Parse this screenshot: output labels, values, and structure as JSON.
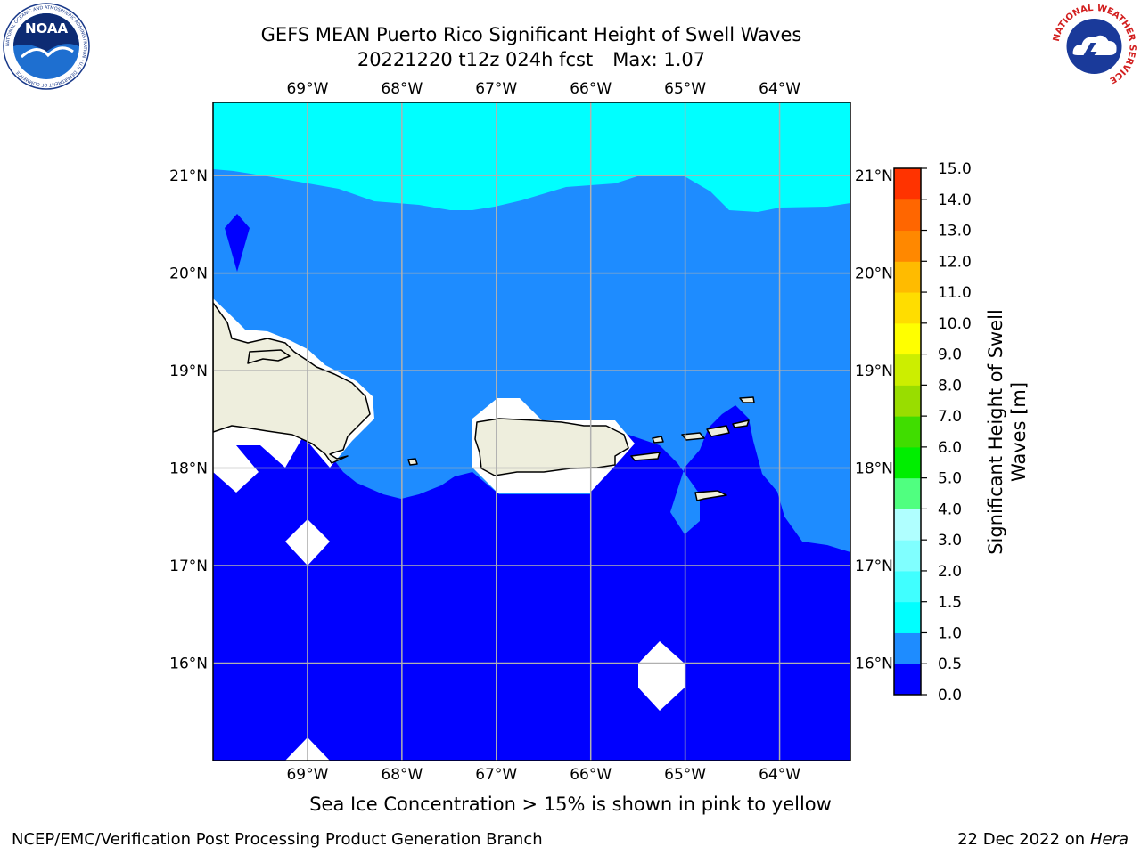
{
  "title": {
    "line1": "GEFS MEAN Puerto Rico Significant Height of Swell Waves",
    "run": "20221220 t12z 024h fcst",
    "max": "Max: 1.07"
  },
  "caption": "Sea Ice Concentration > 15% is shown in pink to yellow",
  "footer": {
    "left": "NCEP/EMC/Verification Post Processing Product Generation Branch",
    "date": "22 Dec 2022 on",
    "host": "Hera"
  },
  "logos": {
    "noaa": {
      "text": "NOAA",
      "ring": "NATIONAL OCEANIC AND ATMOSPHERIC ADMINISTRATION · U.S. DEPARTMENT OF COMMERCE"
    },
    "nws": {
      "ring": "NATIONAL WEATHER SERVICE"
    }
  },
  "map": {
    "lon_labels": [
      "69°W",
      "68°W",
      "67°W",
      "66°W",
      "65°W",
      "64°W"
    ],
    "lat_labels": [
      "21°N",
      "20°N",
      "19°N",
      "18°N",
      "17°N",
      "16°N"
    ],
    "lon_values": [
      -69,
      -68,
      -67,
      -66,
      -65,
      -64
    ],
    "lat_values": [
      21,
      20,
      19,
      18,
      17,
      16
    ],
    "extent": {
      "lon": [
        -70.0,
        -63.25
      ],
      "lat": [
        15.0,
        21.75
      ]
    },
    "colors": {
      "land": "#eeeedd",
      "missing": "#ffffff",
      "gridline": "#b0b0b0"
    }
  },
  "colorbar": {
    "label_line1": "Significant Height of Swell",
    "label_line2": "Waves [m]",
    "levels": [
      "0.0",
      "0.5",
      "1.0",
      "1.5",
      "2.0",
      "3.0",
      "4.0",
      "5.0",
      "6.0",
      "7.0",
      "8.0",
      "9.0",
      "10.0",
      "11.0",
      "12.0",
      "13.0",
      "14.0",
      "15.0"
    ],
    "colors": [
      "#0000ff",
      "#1e8cff",
      "#00ffff",
      "#40ffff",
      "#80ffff",
      "#b0ffff",
      "#50ff80",
      "#00ee00",
      "#40dd00",
      "#99dd00",
      "#ccee00",
      "#ffff00",
      "#ffdd00",
      "#ffbb00",
      "#ff8800",
      "#ff6600",
      "#ff3300",
      "#ff0000"
    ]
  }
}
